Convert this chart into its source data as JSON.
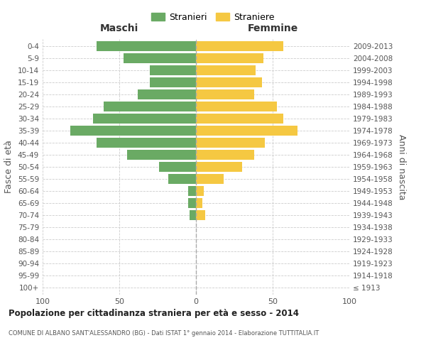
{
  "age_groups": [
    "100+",
    "95-99",
    "90-94",
    "85-89",
    "80-84",
    "75-79",
    "70-74",
    "65-69",
    "60-64",
    "55-59",
    "50-54",
    "45-49",
    "40-44",
    "35-39",
    "30-34",
    "25-29",
    "20-24",
    "15-19",
    "10-14",
    "5-9",
    "0-4"
  ],
  "birth_years": [
    "≤ 1913",
    "1914-1918",
    "1919-1923",
    "1924-1928",
    "1929-1933",
    "1934-1938",
    "1939-1943",
    "1944-1948",
    "1949-1953",
    "1954-1958",
    "1959-1963",
    "1964-1968",
    "1969-1973",
    "1974-1978",
    "1979-1983",
    "1984-1988",
    "1989-1993",
    "1994-1998",
    "1999-2003",
    "2004-2008",
    "2009-2013"
  ],
  "maschi": [
    0,
    0,
    0,
    0,
    0,
    0,
    4,
    5,
    5,
    18,
    24,
    45,
    65,
    82,
    67,
    60,
    38,
    30,
    30,
    47,
    65
  ],
  "femmine": [
    0,
    0,
    0,
    0,
    0,
    0,
    6,
    4,
    5,
    18,
    30,
    38,
    45,
    66,
    57,
    53,
    38,
    43,
    39,
    44,
    57
  ],
  "male_color": "#6aaa64",
  "female_color": "#f5c842",
  "background_color": "#ffffff",
  "grid_color": "#cccccc",
  "title": "Popolazione per cittadinanza straniera per età e sesso - 2014",
  "subtitle": "COMUNE DI ALBANO SANT'ALESSANDRO (BG) - Dati ISTAT 1° gennaio 2014 - Elaborazione TUTTITALIA.IT",
  "xlabel_left": "Maschi",
  "xlabel_right": "Femmine",
  "ylabel_left": "Fasce di età",
  "ylabel_right": "Anni di nascita",
  "legend_male": "Stranieri",
  "legend_female": "Straniere",
  "xlim": 100,
  "bar_height": 0.8
}
